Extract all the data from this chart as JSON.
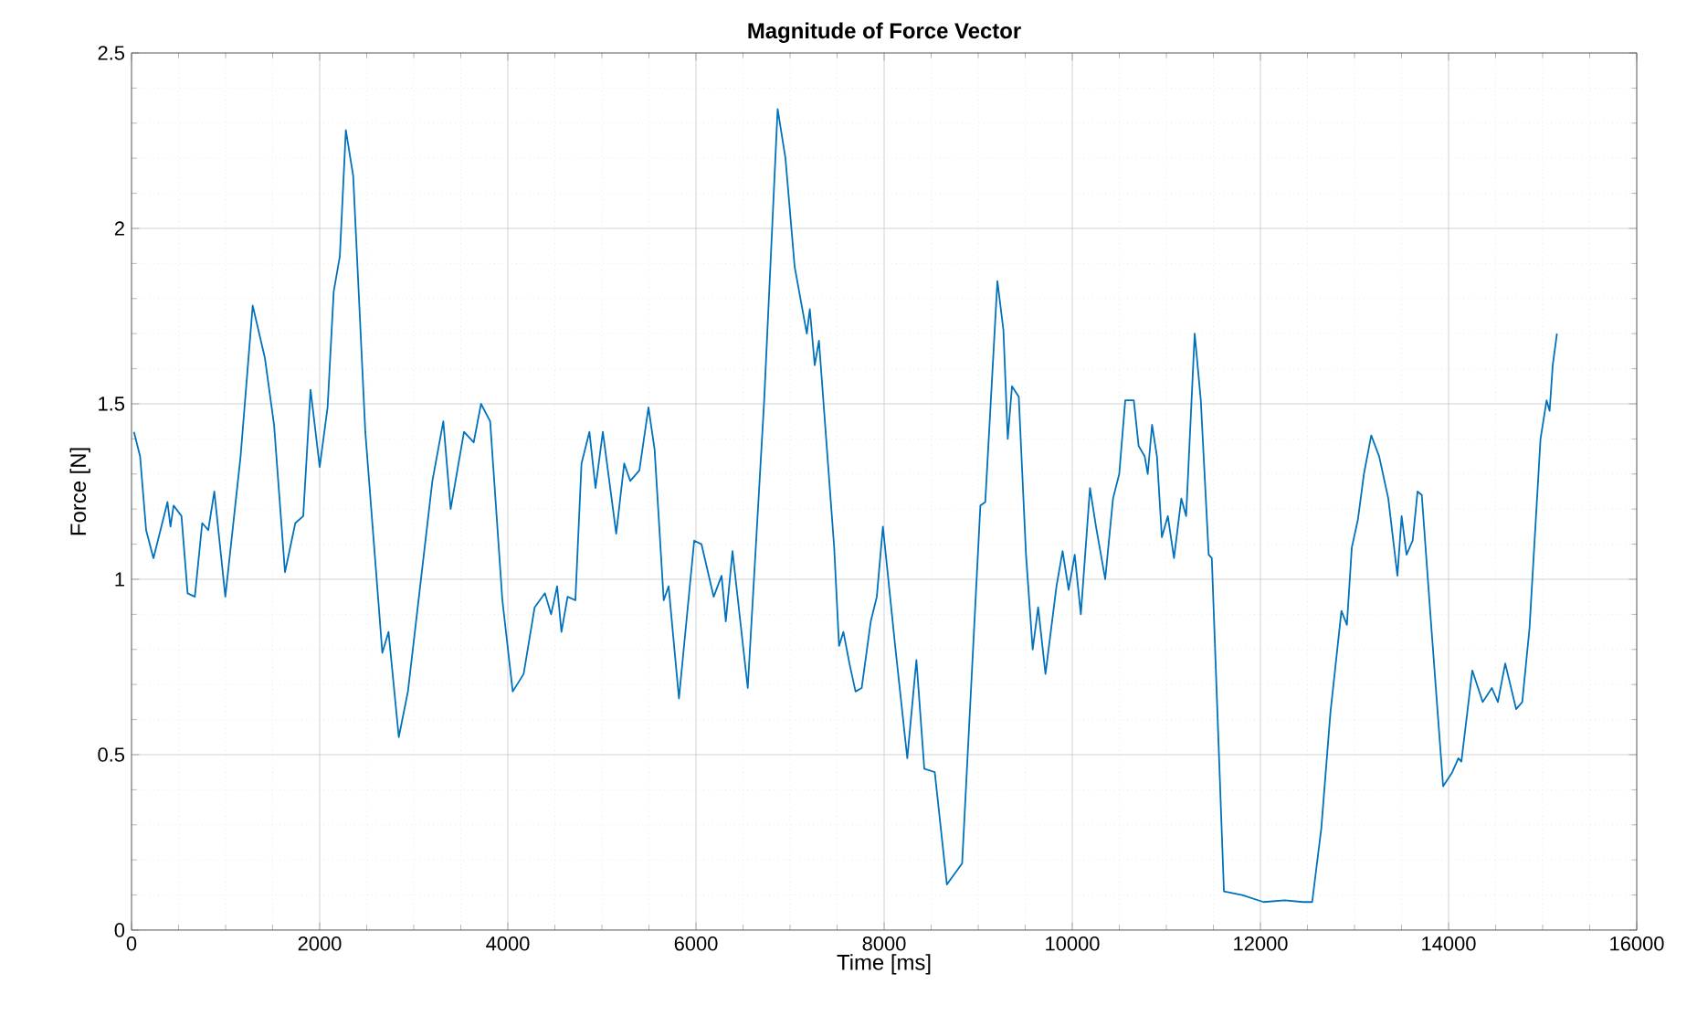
{
  "chart_data": {
    "type": "line",
    "title": "Magnitude of Force Vector",
    "xlabel": "Time [ms]",
    "ylabel": "Force [N]",
    "xlim": [
      0,
      16000
    ],
    "xticks": [
      0,
      2000,
      4000,
      6000,
      8000,
      10000,
      12000,
      14000,
      16000
    ],
    "ylim": [
      0,
      2.5
    ],
    "yticks": [
      0,
      0.5,
      1,
      1.5,
      2,
      2.5
    ],
    "grid": true,
    "marker": "none",
    "line_style": "solid",
    "series": [
      {
        "color": "#0072bd",
        "x": [
          26,
          91,
          155,
          233,
          382,
          414,
          447,
          531,
          596,
          673,
          751,
          816,
          880,
          997,
          1159,
          1288,
          1418,
          1515,
          1631,
          1741,
          1825,
          1903,
          2000,
          2084,
          2149,
          2214,
          2278,
          2356,
          2485,
          2666,
          2732,
          2841,
          2938,
          3198,
          3314,
          3392,
          3534,
          3637,
          3715,
          3812,
          3942,
          4052,
          4168,
          4285,
          4394,
          4460,
          4524,
          4570,
          4635,
          4718,
          4783,
          4867,
          4932,
          5010,
          5152,
          5237,
          5301,
          5398,
          5495,
          5560,
          5657,
          5709,
          5819,
          5981,
          6058,
          6188,
          6272,
          6317,
          6388,
          6550,
          6725,
          6868,
          6951,
          7049,
          7178,
          7210,
          7262,
          7307,
          7469,
          7521,
          7567,
          7631,
          7696,
          7761,
          7858,
          7922,
          7987,
          8117,
          8246,
          8343,
          8427,
          8538,
          8667,
          8829,
          9023,
          9075,
          9204,
          9268,
          9314,
          9359,
          9431,
          9508,
          9579,
          9637,
          9715,
          9832,
          9897,
          9961,
          10026,
          10091,
          10188,
          10252,
          10350,
          10433,
          10499,
          10563,
          10654,
          10705,
          10770,
          10802,
          10848,
          10900,
          10952,
          11016,
          11081,
          11159,
          11210,
          11301,
          11366,
          11450,
          11483,
          11612,
          11806,
          12033,
          12259,
          12453,
          12550,
          12647,
          12744,
          12861,
          12919,
          12971,
          13036,
          13100,
          13178,
          13262,
          13359,
          13456,
          13501,
          13553,
          13618,
          13670,
          13715,
          13812,
          13942,
          14039,
          14104,
          14136,
          14252,
          14363,
          14460,
          14524,
          14602,
          14718,
          14783,
          14860,
          14977,
          15042,
          15074,
          15107,
          15152
        ],
        "values": [
          1.42,
          1.35,
          1.14,
          1.06,
          1.22,
          1.15,
          1.21,
          1.18,
          0.96,
          0.95,
          1.16,
          1.14,
          1.25,
          0.95,
          1.35,
          1.78,
          1.63,
          1.44,
          1.02,
          1.16,
          1.18,
          1.54,
          1.32,
          1.49,
          1.82,
          1.92,
          2.28,
          2.15,
          1.42,
          0.79,
          0.85,
          0.55,
          0.68,
          1.28,
          1.45,
          1.2,
          1.42,
          1.39,
          1.5,
          1.45,
          0.94,
          0.68,
          0.73,
          0.92,
          0.96,
          0.9,
          0.98,
          0.85,
          0.95,
          0.94,
          1.33,
          1.42,
          1.26,
          1.42,
          1.13,
          1.33,
          1.28,
          1.31,
          1.49,
          1.37,
          0.94,
          0.98,
          0.66,
          1.11,
          1.1,
          0.95,
          1.01,
          0.88,
          1.08,
          0.69,
          1.51,
          2.34,
          2.2,
          1.89,
          1.7,
          1.77,
          1.61,
          1.68,
          1.09,
          0.81,
          0.85,
          0.76,
          0.68,
          0.69,
          0.88,
          0.95,
          1.15,
          0.81,
          0.49,
          0.77,
          0.46,
          0.45,
          0.13,
          0.19,
          1.21,
          1.22,
          1.85,
          1.71,
          1.4,
          1.55,
          1.52,
          1.07,
          0.8,
          0.92,
          0.73,
          0.98,
          1.08,
          0.97,
          1.07,
          0.9,
          1.26,
          1.15,
          1.0,
          1.23,
          1.3,
          1.51,
          1.51,
          1.38,
          1.35,
          1.3,
          1.44,
          1.35,
          1.12,
          1.18,
          1.06,
          1.23,
          1.18,
          1.7,
          1.51,
          1.07,
          1.06,
          0.11,
          0.1,
          0.08,
          0.085,
          0.08,
          0.08,
          0.29,
          0.62,
          0.91,
          0.87,
          1.09,
          1.17,
          1.3,
          1.41,
          1.35,
          1.23,
          1.01,
          1.18,
          1.07,
          1.11,
          1.25,
          1.24,
          0.88,
          0.41,
          0.45,
          0.49,
          0.48,
          0.74,
          0.65,
          0.69,
          0.65,
          0.76,
          0.63,
          0.65,
          0.86,
          1.4,
          1.51,
          1.48,
          1.61,
          1.7
        ]
      }
    ]
  }
}
